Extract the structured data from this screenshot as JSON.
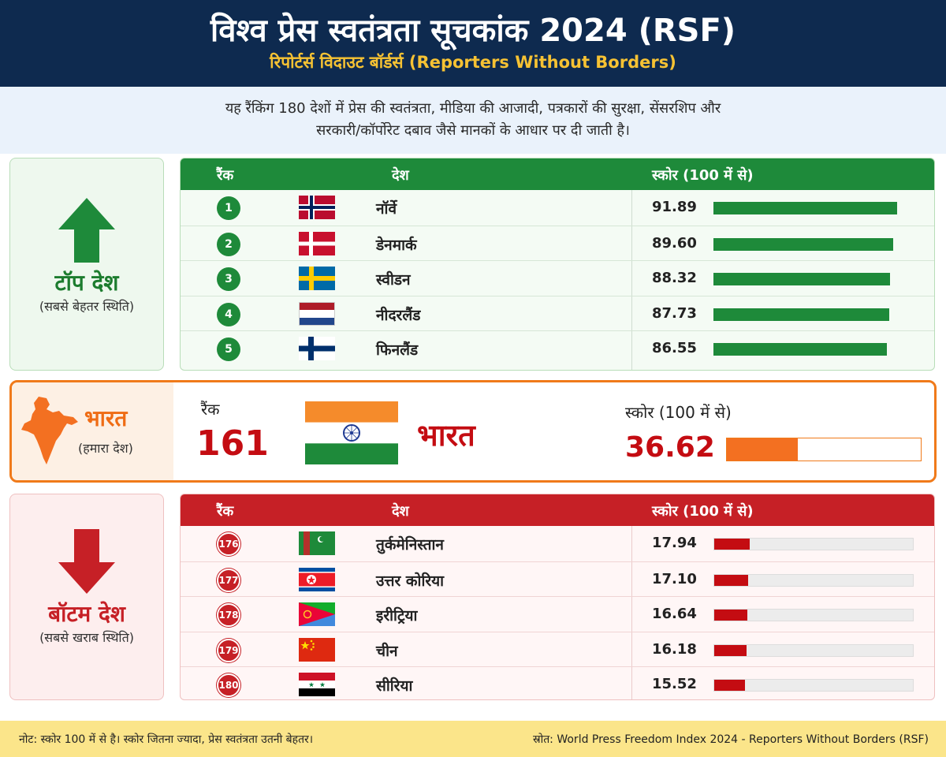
{
  "header": {
    "title": "विश्व प्रेस स्वतंत्रता सूचकांक 2024 (RSF)",
    "subtitle": "रिपोर्टर्स विदाउट बॉर्डर्स (Reporters Without Borders)"
  },
  "intro": {
    "line1": "यह रैंकिंग 180 देशों में प्रेस की स्वतंत्रता, मीडिया की आजादी, पत्रकारों की सुरक्षा, सेंसरशिप और",
    "line2": "सरकारी/कॉर्पोरेट दबाव जैसे मानकों के आधार पर दी जाती है।"
  },
  "top_section": {
    "label": "टॉप देश",
    "sublabel": "(सबसे बेहतर स्थिति)",
    "icon": "arrow-up-icon",
    "color": "#1e8a3a"
  },
  "bottom_section": {
    "label": "बॉटम देश",
    "sublabel": "(सबसे खराब स्थिति)",
    "icon": "arrow-down-icon",
    "color": "#c62026"
  },
  "columns": {
    "rank": "रैंक",
    "country": "देश",
    "score": "स्कोर (100 में से)"
  },
  "india": {
    "label": "भारत",
    "sublabel": "(हमारा देश)",
    "rank_label": "रैंक",
    "rank": "161",
    "name": "भारत",
    "score_label": "स्कोर (100 में से)",
    "score_text": "36.62",
    "flag": "india-flag-icon",
    "map": "india-map-icon",
    "color": "#f37021"
  },
  "chart_data": {
    "type": "table",
    "max_score": 100,
    "top": [
      {
        "rank": "1",
        "country": "नॉर्वे",
        "score": 91.89,
        "score_text": "91.89",
        "flag": "norway-flag-icon"
      },
      {
        "rank": "2",
        "country": "डेनमार्क",
        "score": 89.6,
        "score_text": "89.60",
        "flag": "denmark-flag-icon"
      },
      {
        "rank": "3",
        "country": "स्वीडन",
        "score": 88.32,
        "score_text": "88.32",
        "flag": "sweden-flag-icon"
      },
      {
        "rank": "4",
        "country": "नीदरलैंड",
        "score": 87.73,
        "score_text": "87.73",
        "flag": "netherlands-flag-icon"
      },
      {
        "rank": "5",
        "country": "फिनलैंड",
        "score": 86.55,
        "score_text": "86.55",
        "flag": "finland-flag-icon"
      }
    ],
    "india": {
      "rank": "161",
      "score": 36.62
    },
    "bottom": [
      {
        "rank": "176",
        "country": "तुर्कमेनिस्तान",
        "score": 17.94,
        "score_text": "17.94",
        "flag": "turkmenistan-flag-icon"
      },
      {
        "rank": "177",
        "country": "उत्तर कोरिया",
        "score": 17.1,
        "score_text": "17.10",
        "flag": "north-korea-flag-icon"
      },
      {
        "rank": "178",
        "country": "इरीट्रिया",
        "score": 16.64,
        "score_text": "16.64",
        "flag": "eritrea-flag-icon"
      },
      {
        "rank": "179",
        "country": "चीन",
        "score": 16.18,
        "score_text": "16.18",
        "flag": "china-flag-icon"
      },
      {
        "rank": "180",
        "country": "सीरिया",
        "score": 15.52,
        "score_text": "15.52",
        "flag": "syria-flag-icon"
      }
    ]
  },
  "footer": {
    "note": "नोट: स्कोर 100 में से है। स्कोर जितना ज्यादा, प्रेस स्वतंत्रता उतनी बेहतर।",
    "source": "स्रोत: World Press Freedom Index 2024 - Reporters Without Borders (RSF)"
  }
}
